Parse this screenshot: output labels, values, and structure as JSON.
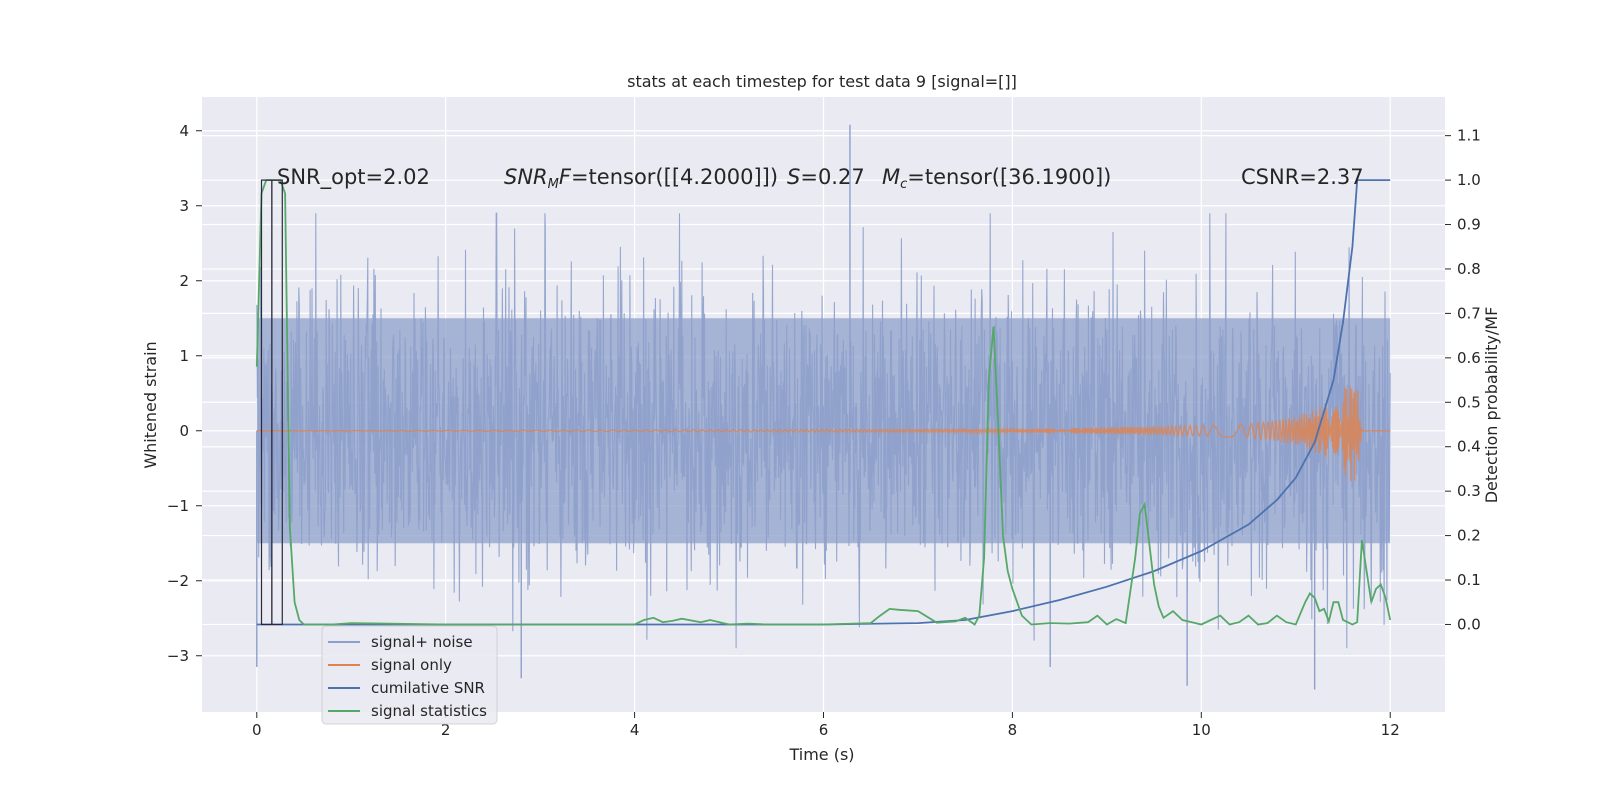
{
  "chart_data": {
    "type": "line",
    "title": "stats at each timestep for test data 9 [signal=[]]",
    "xlabel": "Time (s)",
    "ylabel_left": "Whitened strain",
    "ylabel_right": "Detection probability/MF",
    "xlim": [
      -0.58,
      12.58
    ],
    "ylim_left": [
      -3.75,
      4.45
    ],
    "ylim_right": [
      -0.197,
      1.187
    ],
    "x_ticks": [
      0,
      2,
      4,
      6,
      8,
      10,
      12
    ],
    "y_ticks_left": [
      -3,
      -2,
      -1,
      0,
      1,
      2,
      3,
      4
    ],
    "y_ticks_right": [
      0.0,
      0.1,
      0.2,
      0.3,
      0.4,
      0.5,
      0.6,
      0.7,
      0.8,
      0.9,
      1.0,
      1.1
    ],
    "grid": true,
    "legend_position": "lower-left",
    "annotations": {
      "snr_opt": "SNR_opt=2.02",
      "snr_mf": "SNR<sub>M</sub>F=tensor([[4.2000]])",
      "s_value": "S=0.27",
      "mc_value": "M<sub>c</sub>=tensor([36.1900])",
      "csnr": "CSNR=2.37"
    },
    "series": [
      {
        "name": "signal+ noise",
        "axis": "left",
        "color": "#8da0cb",
        "envelope": {
          "x_range": [
            0,
            12
          ],
          "typical_abs": 1.5,
          "peak_points": [
            [
              6.28,
              4.08
            ],
            [
              11.2,
              -3.45
            ],
            [
              9.85,
              -3.4
            ],
            [
              0.0,
              -3.15
            ],
            [
              2.8,
              -3.3
            ],
            [
              8.4,
              -3.15
            ]
          ]
        }
      },
      {
        "name": "signal only",
        "axis": "left",
        "color": "#dd8452",
        "x": [
          0,
          8,
          9,
          10,
          10.5,
          11.0,
          11.3,
          11.5,
          11.6,
          11.65,
          11.7
        ],
        "amplitude": [
          0.0,
          0.01,
          0.02,
          0.03,
          0.04,
          0.08,
          0.15,
          0.25,
          0.3,
          0.28,
          0.0
        ]
      },
      {
        "name": "cumilative SNR",
        "axis": "right",
        "color": "#4c72b0",
        "x": [
          0,
          6.0,
          7.0,
          7.5,
          8.0,
          8.5,
          9.0,
          9.5,
          10.0,
          10.5,
          10.8,
          11.0,
          11.2,
          11.4,
          11.5,
          11.6,
          11.65,
          12.0
        ],
        "values": [
          0.0,
          0.0,
          0.003,
          0.01,
          0.03,
          0.055,
          0.085,
          0.12,
          0.165,
          0.225,
          0.28,
          0.33,
          0.41,
          0.55,
          0.68,
          0.85,
          1.0,
          1.0
        ]
      },
      {
        "name": "signal statistics",
        "axis": "right",
        "color": "#55a868",
        "x": [
          0.0,
          0.05,
          0.1,
          0.15,
          0.2,
          0.25,
          0.3,
          0.35,
          0.4,
          0.45,
          0.5,
          0.6,
          0.8,
          1.0,
          2.0,
          3.0,
          4.0,
          4.1,
          4.2,
          4.3,
          4.4,
          4.5,
          4.7,
          4.8,
          5.0,
          5.2,
          5.4,
          6.0,
          6.5,
          6.6,
          6.7,
          6.8,
          7.0,
          7.2,
          7.4,
          7.5,
          7.6,
          7.65,
          7.7,
          7.75,
          7.8,
          7.85,
          7.9,
          7.95,
          8.0,
          8.1,
          8.2,
          8.4,
          8.6,
          8.8,
          8.9,
          9.0,
          9.1,
          9.2,
          9.3,
          9.35,
          9.4,
          9.45,
          9.5,
          9.55,
          9.6,
          9.7,
          9.8,
          9.9,
          10.0,
          10.1,
          10.2,
          10.3,
          10.4,
          10.5,
          10.6,
          10.7,
          10.8,
          10.9,
          11.0,
          11.1,
          11.15,
          11.2,
          11.25,
          11.3,
          11.35,
          11.4,
          11.45,
          11.5,
          11.55,
          11.6,
          11.65,
          11.7,
          11.75,
          11.8,
          11.85,
          11.9,
          11.95,
          12.0
        ],
        "values": [
          0.58,
          0.97,
          1.0,
          1.0,
          1.0,
          1.0,
          0.97,
          0.22,
          0.05,
          0.01,
          0.0,
          0.0,
          0.0,
          0.003,
          0.0,
          0.0,
          0.0,
          0.01,
          0.015,
          0.005,
          0.008,
          0.013,
          0.005,
          0.01,
          0.0,
          0.002,
          0.0,
          0.0,
          0.003,
          0.02,
          0.035,
          0.033,
          0.03,
          0.004,
          0.007,
          0.015,
          0.0,
          0.02,
          0.15,
          0.55,
          0.67,
          0.45,
          0.2,
          0.12,
          0.08,
          0.02,
          0.0,
          0.003,
          0.002,
          0.005,
          0.02,
          0.0,
          0.012,
          0.003,
          0.15,
          0.25,
          0.27,
          0.18,
          0.09,
          0.04,
          0.015,
          0.03,
          0.01,
          0.005,
          0.0,
          0.01,
          0.02,
          0.0,
          0.005,
          0.02,
          0.0,
          0.003,
          0.02,
          0.005,
          0.0,
          0.05,
          0.07,
          0.06,
          0.03,
          0.035,
          0.007,
          0.05,
          0.05,
          0.01,
          0.005,
          0.0,
          0.005,
          0.19,
          0.12,
          0.05,
          0.08,
          0.09,
          0.06,
          0.01
        ]
      }
    ]
  }
}
